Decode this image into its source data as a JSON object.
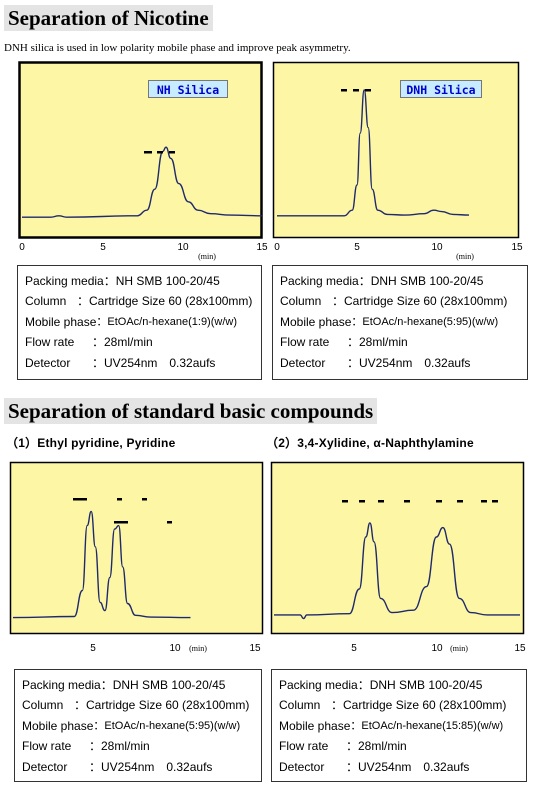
{
  "section1": {
    "title": "Separation of Nicotine",
    "subtitle": "DNH silica is used in low polarity mobile phase and improve peak asymmetry."
  },
  "section2": {
    "title": "Separation of standard basic compounds",
    "label_a": "（1）Ethyl pyridine, Pyridine",
    "label_b": "（2）3,4-Xylidine, α-Naphthylamine"
  },
  "colors": {
    "plot_bg": "#fdf7a5",
    "trace": "#1f2a6e",
    "tag_bg": "#c8ecff",
    "tag_text": "#0000cc"
  },
  "chart_data": [
    {
      "type": "line",
      "tag": "NH Silica",
      "x_ticks": [
        "0",
        "5",
        "10",
        "15"
      ],
      "x_unit": "(min)",
      "xlim": [
        0,
        15
      ],
      "ylim": [
        0,
        1
      ],
      "series": [
        {
          "x": [
            0,
            1.8,
            2.3,
            2.8,
            7.2,
            7.8,
            8.3,
            8.8,
            9.0,
            9.3,
            9.8,
            10.4,
            11.0,
            11.8,
            13.0,
            15.0
          ],
          "y": [
            0.02,
            0.02,
            0.03,
            0.02,
            0.03,
            0.07,
            0.22,
            0.49,
            0.52,
            0.44,
            0.26,
            0.13,
            0.07,
            0.045,
            0.035,
            0.03
          ]
        }
      ]
    },
    {
      "type": "line",
      "tag": "DNH Silica",
      "x_ticks": [
        "0",
        "5",
        "10",
        "15"
      ],
      "x_unit": "(min)",
      "xlim": [
        0,
        15
      ],
      "ylim": [
        0,
        1
      ],
      "series": [
        {
          "x": [
            0,
            4.2,
            4.7,
            5.0,
            5.2,
            5.45,
            5.7,
            5.95,
            6.3,
            6.9,
            8.0,
            9.2,
            9.8,
            10.3,
            11.0,
            12.0
          ],
          "y": [
            0.03,
            0.03,
            0.07,
            0.25,
            0.62,
            0.93,
            0.66,
            0.22,
            0.07,
            0.04,
            0.035,
            0.045,
            0.07,
            0.06,
            0.04,
            0.035
          ]
        }
      ]
    },
    {
      "type": "line",
      "x_ticks": [
        "5",
        "10",
        "15"
      ],
      "x_unit": "(min)",
      "xlim": [
        0,
        15
      ],
      "ylim": [
        0,
        1
      ],
      "series": [
        {
          "x": [
            0,
            3.8,
            4.3,
            4.6,
            4.85,
            5.1,
            5.4,
            5.7,
            6.0,
            6.3,
            6.55,
            6.8,
            7.1,
            7.6,
            8.5,
            11.0
          ],
          "y": [
            0.02,
            0.03,
            0.25,
            0.8,
            0.92,
            0.62,
            0.15,
            0.08,
            0.36,
            0.77,
            0.8,
            0.45,
            0.14,
            0.04,
            0.025,
            0.02
          ]
        }
      ]
    },
    {
      "type": "line",
      "x_ticks": [
        "5",
        "10",
        "15"
      ],
      "x_unit": "(min)",
      "xlim": [
        0,
        15
      ],
      "ylim": [
        0,
        1
      ],
      "series": [
        {
          "x": [
            0,
            1.6,
            1.8,
            2.0,
            4.6,
            5.2,
            5.6,
            5.85,
            6.1,
            6.5,
            7.2,
            8.5,
            9.3,
            9.9,
            10.3,
            10.7,
            11.3,
            12.0,
            13.0,
            15.0
          ],
          "y": [
            0.06,
            0.06,
            0.03,
            0.06,
            0.07,
            0.28,
            0.72,
            0.84,
            0.68,
            0.2,
            0.08,
            0.1,
            0.3,
            0.72,
            0.8,
            0.66,
            0.2,
            0.08,
            0.06,
            0.06
          ]
        }
      ]
    }
  ],
  "info_boxes": [
    {
      "rows": [
        {
          "k": "Packing media",
          "v": "：NH SMB 100-20/45"
        },
        {
          "k": "Column",
          "v": "：Cartridge Size 60 (28x100mm)"
        },
        {
          "k": "Mobile phase",
          "v": "：EtOAc/n-hexane(1:9)(w/w)"
        },
        {
          "k": "Flow rate",
          "v": "：28ml/min"
        },
        {
          "k": "Detector",
          "v": "：UV254nm　0.32aufs"
        }
      ]
    },
    {
      "rows": [
        {
          "k": "Packing media",
          "v": "：DNH SMB 100-20/45"
        },
        {
          "k": "Column",
          "v": "：Cartridge Size 60 (28x100mm)"
        },
        {
          "k": "Mobile phase",
          "v": "：EtOAc/n-hexane(5:95)(w/w)"
        },
        {
          "k": "Flow rate",
          "v": "：28ml/min"
        },
        {
          "k": "Detector",
          "v": "：UV254nm　0.32aufs"
        }
      ]
    },
    {
      "rows": [
        {
          "k": "Packing media",
          "v": "：DNH SMB 100-20/45"
        },
        {
          "k": "Column",
          "v": "：Cartridge Size 60 (28x100mm)"
        },
        {
          "k": "Mobile phase",
          "v": "：EtOAc/n-hexane(5:95)(w/w)"
        },
        {
          "k": "Flow rate",
          "v": "：28ml/min"
        },
        {
          "k": "Detector",
          "v": "：UV254nm　0.32aufs"
        }
      ]
    },
    {
      "rows": [
        {
          "k": "Packing media",
          "v": "：DNH SMB 100-20/45"
        },
        {
          "k": "Column",
          "v": "：Cartridge Size 60 (28x100mm)"
        },
        {
          "k": "Mobile phase",
          "v": "：EtOAc/n-hexane(15:85)(w/w)"
        },
        {
          "k": "Flow rate",
          "v": "：28ml/min"
        },
        {
          "k": "Detector",
          "v": "：UV254nm　0.32aufs"
        }
      ]
    }
  ]
}
